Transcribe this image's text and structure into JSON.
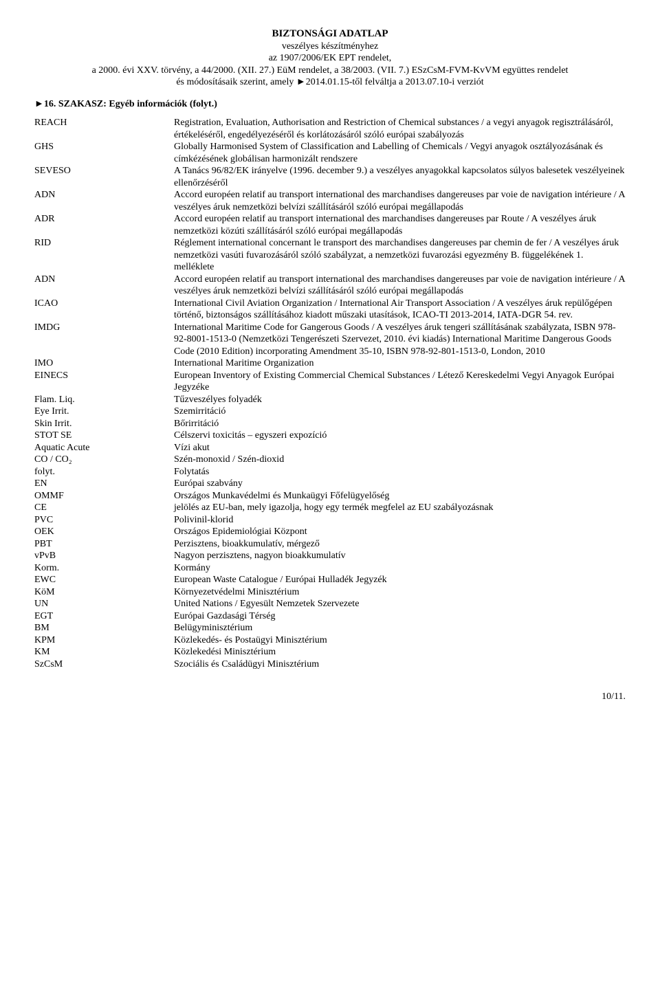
{
  "header": {
    "title": "BIZTONSÁGI ADATLAP",
    "line1": "veszélyes készítményhez",
    "line2": "az 1907/2006/EK EPT rendelet,",
    "line3": "a 2000. évi XXV. törvény, a 44/2000. (XII. 27.) EüM rendelet, a 38/2003. (VII. 7.) ESzCsM-FVM-KvVM együttes rendelet",
    "line4": "és módosításaik szerint, amely ►2014.01.15-től felváltja a 2013.07.10-i verziót"
  },
  "section_head": "►16. SZAKASZ: Egyéb információk (folyt.)",
  "defs": [
    {
      "abbr": "REACH",
      "desc": "Registration, Evaluation, Authorisation and Restriction of Chemical substances / a vegyi anyagok regisztrálásáról, értékeléséről, engedélyezéséről és korlátozásáról szóló európai szabályozás"
    },
    {
      "abbr": "GHS",
      "desc": "Globally Harmonised System of Classification and Labelling of Chemicals / Vegyi anyagok osztályozásának és címkézésének globálisan harmonizált rendszere"
    },
    {
      "abbr": "SEVESO",
      "desc": "A Tanács 96/82/EK irányelve (1996. december 9.) a veszélyes anyagokkal kapcsolatos súlyos balesetek veszélyeinek ellenőrzéséről"
    },
    {
      "abbr": "ADN",
      "desc": "Accord européen relatif au transport international des marchandises dangereuses par voie de navigation intérieure / A veszélyes áruk nemzetközi belvízi szállításáról szóló európai megállapodás"
    },
    {
      "abbr": "ADR",
      "desc": "Accord européen relatif au transport international des marchandises dangereuses par Route / A veszélyes áruk nemzetközi közúti szállításáról szóló európai megállapodás"
    },
    {
      "abbr": "RID",
      "desc": "Réglement international concernant le transport des marchandises dangereuses par chemin de fer / A veszélyes áruk nemzetközi vasúti fuvarozásáról szóló szabályzat, a nemzetközi fuvarozási egyezmény B. függelékének 1. melléklete"
    },
    {
      "abbr": "ADN",
      "desc": "Accord européen relatif au transport international des marchandises dangereuses par voie de navigation intérieure / A veszélyes áruk nemzetközi belvízi szállításáról szóló európai megállapodás"
    },
    {
      "abbr": "ICAO",
      "desc": "International Civil Aviation Organization / International Air Transport Association / A veszélyes áruk repülőgépen történő, biztonságos szállításához kiadott műszaki utasítások, ICAO-TI 2013-2014, IATA-DGR 54. rev."
    },
    {
      "abbr": "IMDG",
      "desc": "International Maritime Code for Gangerous Goods / A veszélyes áruk tengeri szállításának szabályzata, ISBN 978-92-8001-1513-0 (Nemzetközi Tengerészeti Szervezet, 2010. évi kiadás) International Maritime Dangerous Goods Code (2010 Edition) incorporating Amendment 35-10, ISBN 978-92-801-1513-0, London, 2010"
    },
    {
      "abbr": "IMO",
      "desc": "International Maritime Organization"
    },
    {
      "abbr": "EINECS",
      "desc": "European Inventory of Existing Commercial Chemical Substances / Létező Kereskedelmi Vegyi Anyagok Európai Jegyzéke"
    },
    {
      "abbr": "Flam. Liq.",
      "desc": "Tűzveszélyes folyadék"
    },
    {
      "abbr": "Eye Irrit.",
      "desc": "Szemirritáció"
    },
    {
      "abbr": "Skin Irrit.",
      "desc": "Bőrirritáció"
    },
    {
      "abbr": "STOT SE",
      "desc": "Célszervi toxicitás – egyszeri expozíció"
    },
    {
      "abbr": "Aquatic Acute",
      "desc": "Vízi akut"
    },
    {
      "abbr": "CO / CO₂",
      "desc": "Szén-monoxid / Szén-dioxid"
    },
    {
      "abbr": "folyt.",
      "desc": "Folytatás"
    },
    {
      "abbr": "EN",
      "desc": "Európai szabvány"
    },
    {
      "abbr": "OMMF",
      "desc": "Országos Munkavédelmi és Munkaügyi Főfelügyelőség"
    },
    {
      "abbr": "CE",
      "desc": "jelölés az EU-ban, mely igazolja, hogy egy termék megfelel az EU szabályozásnak"
    },
    {
      "abbr": "PVC",
      "desc": "Polivinil-klorid"
    },
    {
      "abbr": "OEK",
      "desc": "Országos Epidemiológiai Központ"
    },
    {
      "abbr": "PBT",
      "desc": "Perzisztens, bioakkumulatív, mérgező"
    },
    {
      "abbr": "vPvB",
      "desc": "Nagyon perzisztens, nagyon bioakkumulatív"
    },
    {
      "abbr": "Korm.",
      "desc": "Kormány"
    },
    {
      "abbr": "EWC",
      "desc": "European Waste Catalogue / Európai Hulladék Jegyzék"
    },
    {
      "abbr": "KöM",
      "desc": "Környezetvédelmi Minisztérium"
    },
    {
      "abbr": "UN",
      "desc": "United Nations / Egyesült Nemzetek Szervezete"
    },
    {
      "abbr": "EGT",
      "desc": "Európai Gazdasági Térség"
    },
    {
      "abbr": "BM",
      "desc": "Belügyminisztérium"
    },
    {
      "abbr": "KPM",
      "desc": "Közlekedés- és Postaügyi Minisztérium"
    },
    {
      "abbr": "KM",
      "desc": "Közlekedési Minisztérium"
    },
    {
      "abbr": "SzCsM",
      "desc": "Szociális és Családügyi Minisztérium"
    }
  ],
  "pagenum": "10/11."
}
